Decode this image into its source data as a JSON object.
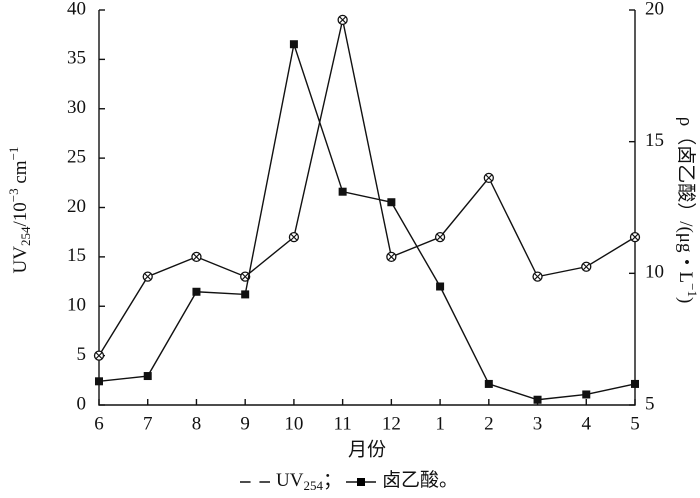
{
  "chart_data": {
    "type": "line",
    "categories": [
      "6",
      "7",
      "8",
      "9",
      "10",
      "11",
      "12",
      "1",
      "2",
      "3",
      "4",
      "5"
    ],
    "x_label": "月份",
    "y_label": [
      "UV",
      "254",
      "/10",
      "−3",
      " cm",
      "−1"
    ],
    "y2_label": [
      "ρ（卤乙酸）/(μg・L",
      "−1",
      ")"
    ],
    "ylim": [
      0,
      40
    ],
    "yticks": [
      0,
      5,
      10,
      15,
      20,
      25,
      30,
      35,
      40
    ],
    "y2lim": [
      5,
      20
    ],
    "y2ticks": [
      5,
      10,
      15,
      20
    ],
    "series": [
      {
        "name": "UV254；",
        "color": "#111111",
        "marker": "circle-x",
        "values": [
          5,
          13,
          15,
          13,
          17,
          39,
          15,
          17,
          23,
          13,
          14,
          17
        ]
      },
      {
        "name": "卤乙酸。",
        "color": "#111111",
        "marker": "square",
        "axis": "y2",
        "values": [
          5.9,
          6.1,
          9.3,
          9.2,
          18.7,
          13.1,
          12.7,
          9.5,
          5.8,
          5.2,
          5.4,
          5.8
        ]
      }
    ]
  }
}
